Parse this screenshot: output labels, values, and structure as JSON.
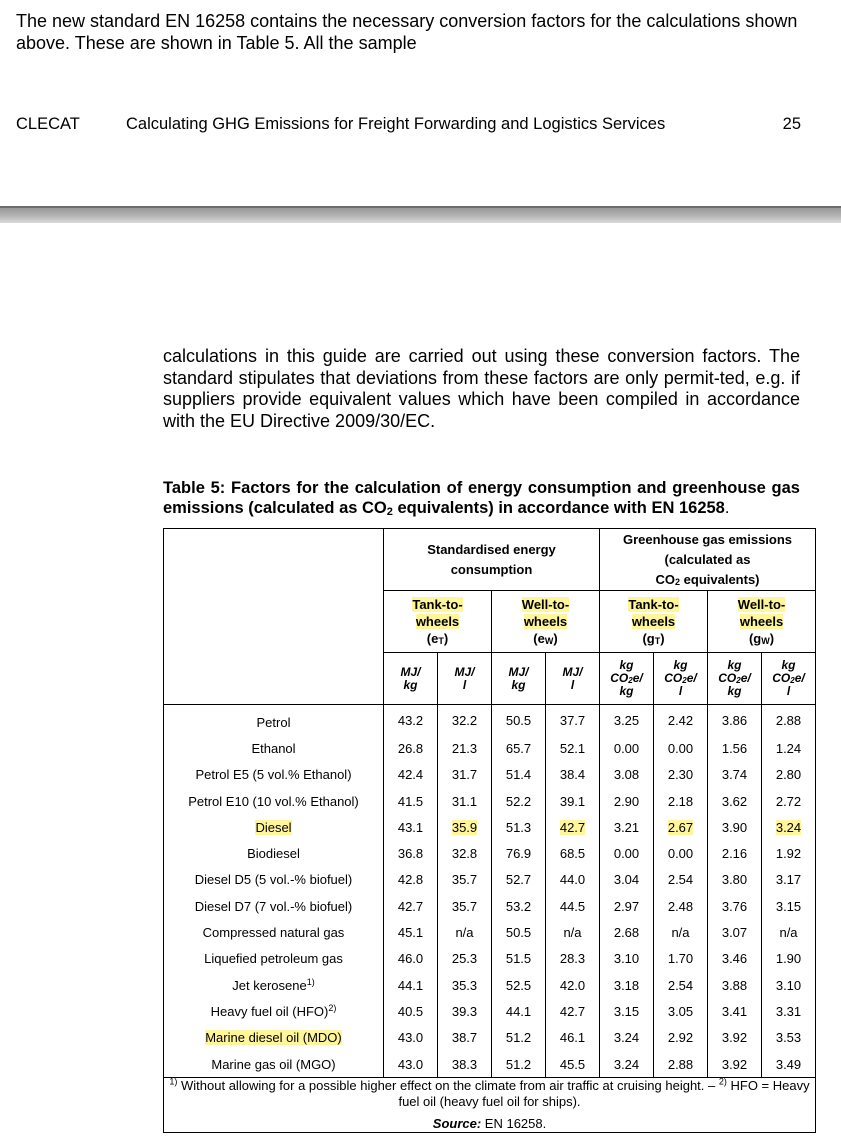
{
  "top_text": "The new standard EN 16258 contains the necessary conversion factors for the calculations shown above. These are shown in Table 5. All the sample",
  "header": {
    "org": "CLECAT",
    "title": "Calculating GHG Emissions for Freight Forwarding and Logistics Services",
    "page": "25"
  },
  "paragraph": "calculations in this guide are carried out using these conversion factors. The standard stipulates that deviations from these factors are only permit-ted, e.g. if suppliers provide equivalent values which have been compiled in accordance with the EU Directive 2009/30/EC.",
  "caption": {
    "part1": "Table 5: Factors for the calculation of energy consumption and greenhouse gas emissions (calculated as CO",
    "sub": "2",
    "part2": " equivalents) in accordance with EN 16258",
    "tail": "."
  },
  "table": {
    "group_energy": "Standardised energy consumption",
    "group_ghg_line1": "Greenhouse gas emissions",
    "group_ghg_line2": "(calculated as",
    "group_ghg_line3_pre": "CO",
    "group_ghg_line3_sub": "2",
    "group_ghg_line3_post": " equivalents)",
    "sub_headers": [
      {
        "label": "Tank-to-wheels",
        "line1": "Tank-to-",
        "line2": "wheels",
        "sym": "e",
        "sym_sub": "T"
      },
      {
        "label": "Well-to-wheels",
        "line1": "Well-to-",
        "line2": "wheels",
        "sym": "e",
        "sym_sub": "W"
      },
      {
        "label": "Tank-to-wheels",
        "line1": "Tank-to-",
        "line2": "wheels",
        "sym": "g",
        "sym_sub": "T"
      },
      {
        "label": "Well-to-wheels",
        "line1": "Well-to-",
        "line2": "wheels",
        "sym": "g",
        "sym_sub": "W"
      }
    ],
    "units": [
      {
        "l1": "MJ/",
        "l2": "kg"
      },
      {
        "l1": "MJ/",
        "l2": "l"
      },
      {
        "l1": "MJ/",
        "l2": "kg"
      },
      {
        "l1": "MJ/",
        "l2": "l"
      },
      {
        "l1": "kg",
        "l2a": "CO",
        "l2s": "2",
        "l2b": "e/",
        "l3": "kg"
      },
      {
        "l1": "kg",
        "l2a": "CO",
        "l2s": "2",
        "l2b": "e/",
        "l3": "l"
      },
      {
        "l1": "kg",
        "l2a": "CO",
        "l2s": "2",
        "l2b": "e/",
        "l3": "kg"
      },
      {
        "l1": "kg",
        "l2a": "CO",
        "l2s": "2",
        "l2b": "e/",
        "l3": "l"
      }
    ],
    "rows": [
      {
        "fuel": "Petrol",
        "fn": "",
        "hl": false,
        "values": [
          "43.2",
          "32.2",
          "50.5",
          "37.7",
          "3.25",
          "2.42",
          "3.86",
          "2.88"
        ],
        "hl_cells": []
      },
      {
        "fuel": "Ethanol",
        "fn": "",
        "hl": false,
        "values": [
          "26.8",
          "21.3",
          "65.7",
          "52.1",
          "0.00",
          "0.00",
          "1.56",
          "1.24"
        ],
        "hl_cells": []
      },
      {
        "fuel": "Petrol E5 (5 vol.% Ethanol)",
        "fn": "",
        "hl": false,
        "values": [
          "42.4",
          "31.7",
          "51.4",
          "38.4",
          "3.08",
          "2.30",
          "3.74",
          "2.80"
        ],
        "hl_cells": []
      },
      {
        "fuel": "Petrol E10 (10 vol.% Ethanol)",
        "fn": "",
        "hl": false,
        "values": [
          "41.5",
          "31.1",
          "52.2",
          "39.1",
          "2.90",
          "2.18",
          "3.62",
          "2.72"
        ],
        "hl_cells": []
      },
      {
        "fuel": "Diesel",
        "fn": "",
        "hl": true,
        "values": [
          "43.1",
          "35.9",
          "51.3",
          "42.7",
          "3.21",
          "2.67",
          "3.90",
          "3.24"
        ],
        "hl_cells": [
          1,
          3,
          5,
          7
        ]
      },
      {
        "fuel": "Biodiesel",
        "fn": "",
        "hl": false,
        "values": [
          "36.8",
          "32.8",
          "76.9",
          "68.5",
          "0.00",
          "0.00",
          "2.16",
          "1.92"
        ],
        "hl_cells": []
      },
      {
        "fuel": "Diesel D5 (5 vol.-% biofuel)",
        "fn": "",
        "hl": false,
        "values": [
          "42.8",
          "35.7",
          "52.7",
          "44.0",
          "3.04",
          "2.54",
          "3.80",
          "3.17"
        ],
        "hl_cells": []
      },
      {
        "fuel": "Diesel D7 (7 vol.-% biofuel)",
        "fn": "",
        "hl": false,
        "values": [
          "42.7",
          "35.7",
          "53.2",
          "44.5",
          "2.97",
          "2.48",
          "3.76",
          "3.15"
        ],
        "hl_cells": []
      },
      {
        "fuel": "Compressed natural gas",
        "fn": "",
        "hl": false,
        "values": [
          "45.1",
          "n/a",
          "50.5",
          "n/a",
          "2.68",
          "n/a",
          "3.07",
          "n/a"
        ],
        "hl_cells": []
      },
      {
        "fuel": "Liquefied petroleum gas",
        "fn": "",
        "hl": false,
        "values": [
          "46.0",
          "25.3",
          "51.5",
          "28.3",
          "3.10",
          "1.70",
          "3.46",
          "1.90"
        ],
        "hl_cells": []
      },
      {
        "fuel": "Jet kerosene",
        "fn": "1)",
        "hl": false,
        "values": [
          "44.1",
          "35.3",
          "52.5",
          "42.0",
          "3.18",
          "2.54",
          "3.88",
          "3.10"
        ],
        "hl_cells": []
      },
      {
        "fuel": "Heavy fuel oil (HFO)",
        "fn": "2)",
        "hl": false,
        "values": [
          "40.5",
          "39.3",
          "44.1",
          "42.7",
          "3.15",
          "3.05",
          "3.41",
          "3.31"
        ],
        "hl_cells": []
      },
      {
        "fuel": "Marine diesel oil (MDO)",
        "fn": "",
        "hl": true,
        "values": [
          "43.0",
          "38.7",
          "51.2",
          "46.1",
          "3.24",
          "2.92",
          "3.92",
          "3.53"
        ],
        "hl_cells": []
      },
      {
        "fuel": "Marine gas oil (MGO)",
        "fn": "",
        "hl": false,
        "values": [
          "43.0",
          "38.3",
          "51.2",
          "45.5",
          "3.24",
          "2.88",
          "3.92",
          "3.49"
        ],
        "hl_cells": []
      }
    ],
    "footnote1_mark": "1)",
    "footnote1_text": " Without allowing for a possible higher effect on the climate from air traffic at cruising height. – ",
    "footnote2_mark": "2)",
    "footnote2_text": " HFO = Heavy fuel oil (heavy fuel oil for ships).",
    "source_label": "Source:",
    "source_text": " EN 16258."
  },
  "colors": {
    "highlight": "#fff59a",
    "rule_bar": "#9a9a9a"
  }
}
